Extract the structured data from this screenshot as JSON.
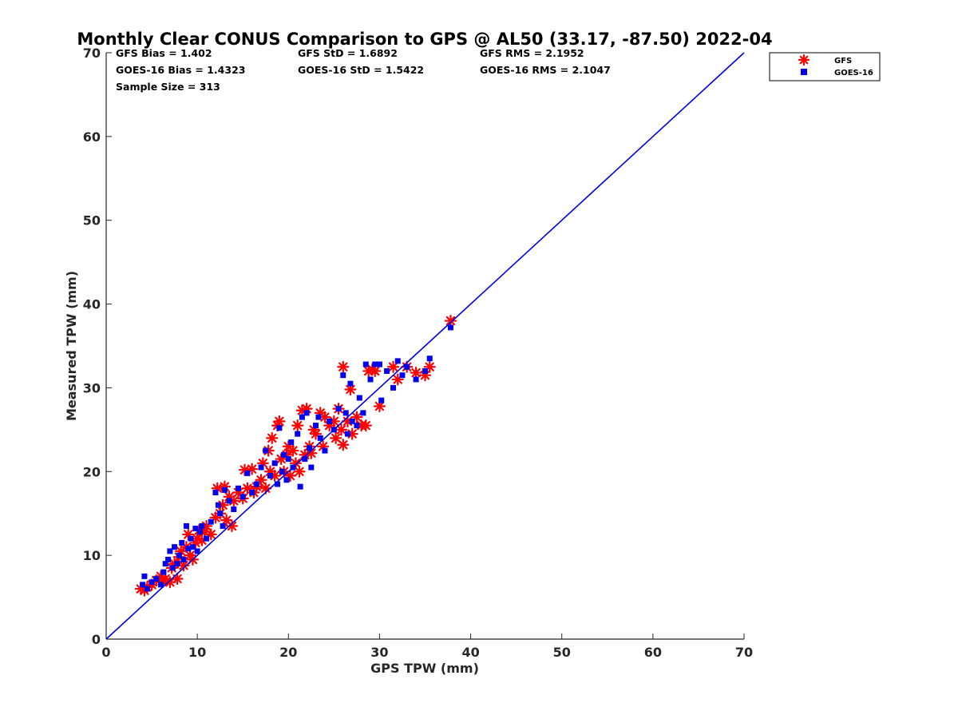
{
  "chart_data": {
    "type": "scatter",
    "title": "Monthly Clear CONUS Comparison to GPS @ AL50 (33.17, -87.50) 2022-04",
    "xlabel": "GPS TPW (mm)",
    "ylabel": "Measured TPW (mm)",
    "xlim": [
      0,
      70
    ],
    "ylim": [
      0,
      70
    ],
    "xticks": [
      "0",
      "10",
      "20",
      "30",
      "40",
      "50",
      "60",
      "70"
    ],
    "yticks": [
      "0",
      "10",
      "20",
      "30",
      "40",
      "50",
      "60",
      "70"
    ],
    "grid": false,
    "legend_position": "top-right",
    "stats": {
      "gfs_bias": "GFS Bias = 1.402",
      "gfs_std": "GFS StD = 1.6892",
      "gfs_rms": "GFS RMS = 2.1952",
      "goes_bias": "GOES-16 Bias = 1.4323",
      "goes_std": "GOES-16 StD = 1.5422",
      "goes_rms": "GOES-16 RMS = 2.1047",
      "sample_size": "Sample Size = 313"
    },
    "reference_line": {
      "x": [
        0,
        70
      ],
      "y": [
        0,
        70
      ],
      "color": "#0000dd"
    },
    "series": [
      {
        "name": "GFS",
        "marker": "asterisk",
        "color": "#ff0000",
        "points": [
          [
            3.8,
            6.0
          ],
          [
            4.2,
            5.8
          ],
          [
            4.5,
            6.2
          ],
          [
            5.0,
            6.5
          ],
          [
            5.5,
            7.0
          ],
          [
            6.0,
            7.5
          ],
          [
            6.2,
            6.8
          ],
          [
            6.5,
            7.2
          ],
          [
            7.0,
            6.8
          ],
          [
            7.2,
            8.5
          ],
          [
            7.5,
            9.0
          ],
          [
            7.8,
            7.2
          ],
          [
            8.0,
            9.8
          ],
          [
            8.2,
            10.5
          ],
          [
            8.5,
            8.8
          ],
          [
            8.8,
            11.0
          ],
          [
            9.0,
            12.5
          ],
          [
            9.2,
            10.0
          ],
          [
            9.5,
            9.5
          ],
          [
            9.8,
            11.5
          ],
          [
            10.0,
            12.0
          ],
          [
            10.2,
            13.0
          ],
          [
            10.5,
            11.8
          ],
          [
            10.8,
            12.8
          ],
          [
            11.0,
            13.5
          ],
          [
            11.5,
            12.5
          ],
          [
            12.0,
            14.5
          ],
          [
            12.2,
            18.0
          ],
          [
            12.5,
            15.0
          ],
          [
            12.8,
            16.0
          ],
          [
            13.0,
            18.2
          ],
          [
            13.2,
            14.2
          ],
          [
            13.5,
            17.0
          ],
          [
            13.8,
            13.5
          ],
          [
            14.0,
            16.5
          ],
          [
            14.5,
            17.5
          ],
          [
            15.0,
            16.8
          ],
          [
            15.2,
            20.2
          ],
          [
            15.5,
            18.0
          ],
          [
            16.0,
            20.3
          ],
          [
            16.2,
            17.5
          ],
          [
            16.5,
            18.2
          ],
          [
            17.0,
            19.0
          ],
          [
            17.2,
            21.0
          ],
          [
            17.5,
            18.0
          ],
          [
            17.8,
            22.5
          ],
          [
            18.0,
            20.0
          ],
          [
            18.2,
            24.0
          ],
          [
            18.5,
            19.5
          ],
          [
            18.8,
            25.5
          ],
          [
            19.0,
            26.0
          ],
          [
            19.2,
            21.5
          ],
          [
            19.5,
            20.0
          ],
          [
            19.8,
            22.0
          ],
          [
            20.0,
            23.0
          ],
          [
            20.2,
            19.5
          ],
          [
            20.5,
            22.5
          ],
          [
            20.8,
            21.0
          ],
          [
            21.0,
            25.5
          ],
          [
            21.2,
            20.0
          ],
          [
            21.5,
            27.3
          ],
          [
            21.8,
            22.0
          ],
          [
            22.0,
            27.5
          ],
          [
            22.3,
            23.0
          ],
          [
            22.5,
            22.2
          ],
          [
            22.8,
            25.0
          ],
          [
            23.0,
            24.5
          ],
          [
            23.5,
            27.0
          ],
          [
            23.8,
            23.0
          ],
          [
            24.0,
            26.5
          ],
          [
            24.5,
            25.5
          ],
          [
            25.0,
            26.0
          ],
          [
            25.2,
            24.0
          ],
          [
            25.5,
            27.5
          ],
          [
            25.8,
            25.0
          ],
          [
            26.0,
            23.2
          ],
          [
            26.0,
            32.5
          ],
          [
            26.5,
            26.0
          ],
          [
            26.8,
            29.8
          ],
          [
            27.0,
            24.5
          ],
          [
            27.5,
            26.5
          ],
          [
            28.0,
            25.5
          ],
          [
            28.5,
            25.5
          ],
          [
            28.8,
            32.0
          ],
          [
            29.2,
            32.2
          ],
          [
            29.5,
            32.0
          ],
          [
            30.0,
            27.8
          ],
          [
            31.5,
            32.5
          ],
          [
            32.0,
            31.0
          ],
          [
            33.0,
            32.5
          ],
          [
            34.0,
            31.8
          ],
          [
            35.0,
            31.5
          ],
          [
            35.5,
            32.5
          ],
          [
            37.8,
            38.0
          ]
        ]
      },
      {
        "name": "GOES-16",
        "marker": "square",
        "color": "#0000ee",
        "points": [
          [
            4.0,
            6.5
          ],
          [
            4.2,
            7.5
          ],
          [
            4.5,
            6.0
          ],
          [
            5.0,
            6.8
          ],
          [
            5.5,
            7.2
          ],
          [
            6.0,
            6.5
          ],
          [
            6.3,
            8.0
          ],
          [
            6.5,
            9.0
          ],
          [
            6.8,
            9.5
          ],
          [
            7.0,
            10.5
          ],
          [
            7.3,
            8.5
          ],
          [
            7.5,
            11.0
          ],
          [
            7.8,
            9.0
          ],
          [
            8.0,
            10.0
          ],
          [
            8.3,
            11.5
          ],
          [
            8.5,
            9.5
          ],
          [
            8.8,
            13.5
          ],
          [
            9.0,
            10.8
          ],
          [
            9.3,
            12.0
          ],
          [
            9.5,
            11.0
          ],
          [
            9.8,
            13.2
          ],
          [
            10.0,
            10.5
          ],
          [
            10.3,
            12.8
          ],
          [
            10.5,
            13.5
          ],
          [
            11.0,
            12.0
          ],
          [
            11.5,
            14.0
          ],
          [
            12.0,
            17.5
          ],
          [
            12.3,
            16.0
          ],
          [
            12.5,
            15.0
          ],
          [
            12.8,
            13.5
          ],
          [
            13.0,
            17.8
          ],
          [
            13.5,
            16.5
          ],
          [
            14.0,
            15.5
          ],
          [
            14.5,
            18.0
          ],
          [
            15.0,
            17.0
          ],
          [
            15.5,
            19.8
          ],
          [
            16.0,
            17.5
          ],
          [
            16.5,
            18.5
          ],
          [
            17.0,
            20.5
          ],
          [
            17.5,
            22.5
          ],
          [
            18.0,
            19.5
          ],
          [
            18.5,
            21.0
          ],
          [
            18.8,
            18.5
          ],
          [
            19.0,
            25.2
          ],
          [
            19.3,
            20.0
          ],
          [
            19.5,
            22.0
          ],
          [
            19.8,
            19.0
          ],
          [
            20.0,
            21.5
          ],
          [
            20.3,
            23.5
          ],
          [
            20.5,
            20.5
          ],
          [
            21.0,
            24.5
          ],
          [
            21.3,
            18.2
          ],
          [
            21.5,
            26.5
          ],
          [
            21.8,
            21.5
          ],
          [
            22.0,
            27.0
          ],
          [
            22.3,
            22.8
          ],
          [
            22.5,
            20.5
          ],
          [
            23.0,
            25.5
          ],
          [
            23.3,
            26.5
          ],
          [
            23.5,
            24.0
          ],
          [
            24.0,
            22.5
          ],
          [
            24.5,
            26.0
          ],
          [
            25.0,
            25.0
          ],
          [
            25.5,
            27.5
          ],
          [
            26.0,
            31.5
          ],
          [
            26.3,
            27.0
          ],
          [
            26.5,
            24.5
          ],
          [
            26.8,
            30.5
          ],
          [
            27.0,
            26.0
          ],
          [
            27.5,
            25.5
          ],
          [
            27.8,
            28.8
          ],
          [
            28.2,
            27.0
          ],
          [
            28.5,
            32.8
          ],
          [
            29.0,
            31.0
          ],
          [
            29.5,
            32.8
          ],
          [
            30.0,
            32.8
          ],
          [
            30.2,
            28.5
          ],
          [
            30.8,
            32.0
          ],
          [
            31.5,
            30.0
          ],
          [
            32.0,
            33.2
          ],
          [
            32.5,
            31.5
          ],
          [
            33.0,
            32.5
          ],
          [
            34.0,
            31.0
          ],
          [
            35.0,
            32.0
          ],
          [
            35.5,
            33.5
          ],
          [
            37.8,
            37.2
          ]
        ]
      }
    ]
  }
}
